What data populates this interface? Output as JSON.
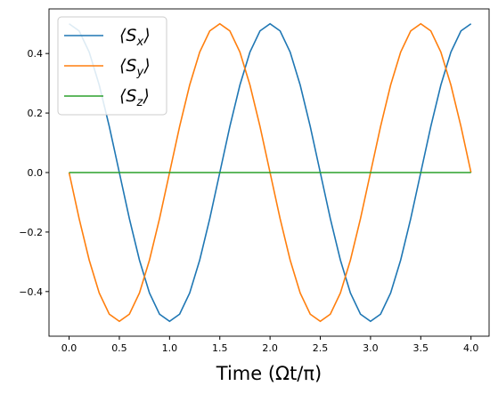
{
  "chart_data": {
    "type": "line",
    "xlabel": "Time (Ωt/π)",
    "x": [
      0,
      0.1,
      0.2,
      0.3,
      0.4,
      0.5,
      0.6,
      0.7,
      0.8,
      0.9,
      1.0,
      1.1,
      1.2,
      1.3,
      1.4,
      1.5,
      1.6,
      1.7,
      1.8,
      1.9,
      2.0,
      2.1,
      2.2,
      2.3,
      2.4,
      2.5,
      2.6,
      2.7,
      2.8,
      2.9,
      3.0,
      3.1,
      3.2,
      3.3,
      3.4,
      3.5,
      3.6,
      3.7,
      3.8,
      3.9,
      4.0
    ],
    "series": [
      {
        "name": "⟨Sx⟩",
        "color": "#1f77b4",
        "values": [
          0.5,
          0.476,
          0.405,
          0.294,
          0.155,
          0,
          -0.155,
          -0.294,
          -0.405,
          -0.476,
          -0.5,
          -0.476,
          -0.405,
          -0.294,
          -0.155,
          0,
          0.155,
          0.294,
          0.405,
          0.476,
          0.5,
          0.476,
          0.405,
          0.294,
          0.155,
          0,
          -0.155,
          -0.294,
          -0.405,
          -0.476,
          -0.5,
          -0.476,
          -0.405,
          -0.294,
          -0.155,
          0,
          0.155,
          0.294,
          0.405,
          0.476,
          0.5
        ]
      },
      {
        "name": "⟨Sy⟩",
        "color": "#ff7f0e",
        "values": [
          0,
          -0.155,
          -0.294,
          -0.405,
          -0.476,
          -0.5,
          -0.476,
          -0.405,
          -0.294,
          -0.155,
          0,
          0.155,
          0.294,
          0.405,
          0.476,
          0.5,
          0.476,
          0.405,
          0.294,
          0.155,
          0,
          -0.155,
          -0.294,
          -0.405,
          -0.476,
          -0.5,
          -0.476,
          -0.405,
          -0.294,
          -0.155,
          0,
          0.155,
          0.294,
          0.405,
          0.476,
          0.5,
          0.476,
          0.405,
          0.294,
          0.155,
          0
        ]
      },
      {
        "name": "⟨Sz⟩",
        "color": "#2ca02c",
        "values": [
          0,
          0,
          0,
          0,
          0,
          0,
          0,
          0,
          0,
          0,
          0,
          0,
          0,
          0,
          0,
          0,
          0,
          0,
          0,
          0,
          0,
          0,
          0,
          0,
          0,
          0,
          0,
          0,
          0,
          0,
          0,
          0,
          0,
          0,
          0,
          0,
          0,
          0,
          0,
          0,
          0
        ]
      }
    ],
    "xlim": [
      -0.2,
      4.18
    ],
    "ylim": [
      -0.55,
      0.55
    ],
    "xticks": [
      {
        "value": 0,
        "label": "0.0"
      },
      {
        "value": 0.5,
        "label": "0.5"
      },
      {
        "value": 1,
        "label": "1.0"
      },
      {
        "value": 1.5,
        "label": "1.5"
      },
      {
        "value": 2,
        "label": "2.0"
      },
      {
        "value": 2.5,
        "label": "2.5"
      },
      {
        "value": 3,
        "label": "3.0"
      },
      {
        "value": 3.5,
        "label": "3.5"
      },
      {
        "value": 4,
        "label": "4.0"
      }
    ],
    "yticks": [
      {
        "value": -0.4,
        "label": "−0.4"
      },
      {
        "value": -0.2,
        "label": "−0.2"
      },
      {
        "value": 0,
        "label": "0.0"
      },
      {
        "value": 0.2,
        "label": "0.2"
      },
      {
        "value": 0.4,
        "label": "0.4"
      }
    ],
    "legend": "upper left"
  }
}
